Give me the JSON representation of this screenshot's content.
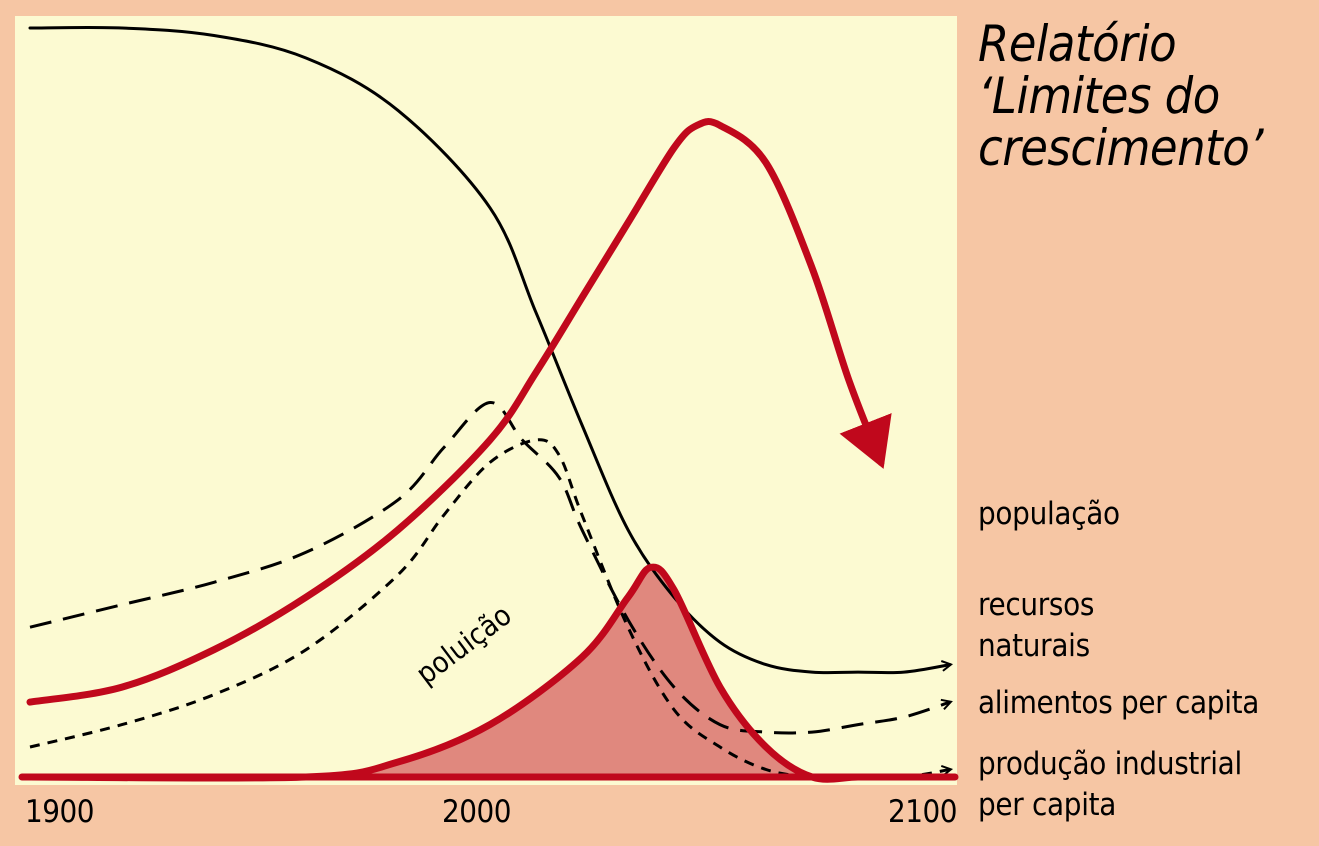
{
  "title_lines": [
    "Relatório",
    "‘Limites do",
    "crescimento’"
  ],
  "colors": {
    "page_background": "#f6c6a4",
    "plot_background": "#fcfad2",
    "accent_red": "#c0081c",
    "pollution_fill": "#e0887e",
    "black": "#000000"
  },
  "chart_data": {
    "type": "line",
    "title": "Relatório ‘Limites do crescimento’",
    "xlabel": "",
    "ylabel": "",
    "x_ticks": [
      "1900",
      "2000",
      "2100"
    ],
    "xlim": [
      1900,
      2100
    ],
    "ylim": [
      0,
      1
    ],
    "y_axis_shown": false,
    "grid": false,
    "legend_placement": "right of plot, labels at line ends",
    "series": [
      {
        "name": "população",
        "style": "thick red solid, arrow",
        "color": "#c0081c",
        "x": [
          1900,
          1920,
          1940,
          1960,
          1980,
          2000,
          2010,
          2020,
          2030,
          2040,
          2045,
          2050,
          2060,
          2070,
          2078,
          2085
        ],
        "y": [
          0.1,
          0.12,
          0.17,
          0.24,
          0.33,
          0.45,
          0.54,
          0.64,
          0.74,
          0.84,
          0.87,
          0.87,
          0.82,
          0.68,
          0.53,
          0.42
        ]
      },
      {
        "name": "recursos naturais",
        "style": "thin black solid, arrow",
        "color": "#000000",
        "x": [
          1900,
          1920,
          1940,
          1960,
          1980,
          2000,
          2010,
          2020,
          2030,
          2040,
          2050,
          2060,
          2070,
          2080,
          2090,
          2100
        ],
        "y": [
          1.0,
          1.0,
          0.99,
          0.96,
          0.89,
          0.76,
          0.62,
          0.47,
          0.33,
          0.24,
          0.18,
          0.15,
          0.14,
          0.14,
          0.14,
          0.15
        ]
      },
      {
        "name": "alimentos per capita",
        "style": "black long dash, arrow",
        "color": "#000000",
        "x": [
          1900,
          1920,
          1940,
          1960,
          1980,
          1990,
          2000,
          2007,
          2015,
          2020,
          2030,
          2040,
          2050,
          2060,
          2070,
          2080,
          2090,
          2100
        ],
        "y": [
          0.2,
          0.23,
          0.26,
          0.3,
          0.37,
          0.44,
          0.5,
          0.45,
          0.4,
          0.33,
          0.21,
          0.12,
          0.07,
          0.06,
          0.06,
          0.07,
          0.08,
          0.1
        ]
      },
      {
        "name": "produção industrial per capita",
        "style": "black short dash, arrow",
        "color": "#000000",
        "x": [
          1900,
          1920,
          1940,
          1960,
          1980,
          1990,
          2000,
          2010,
          2015,
          2020,
          2030,
          2040,
          2050,
          2060,
          2070,
          2080,
          2090,
          2100
        ],
        "y": [
          0.04,
          0.07,
          0.11,
          0.17,
          0.27,
          0.35,
          0.42,
          0.45,
          0.43,
          0.35,
          0.2,
          0.09,
          0.04,
          0.01,
          0.0,
          0.0,
          0.0,
          0.01
        ]
      },
      {
        "name": "poluição",
        "style": "thick red solid, filled area",
        "color": "#c0081c",
        "x": [
          1900,
          1960,
          1980,
          2000,
          2020,
          2030,
          2035,
          2040,
          2050,
          2060,
          2070,
          2080,
          2090,
          2100
        ],
        "y": [
          0.0,
          0.0,
          0.02,
          0.07,
          0.16,
          0.24,
          0.28,
          0.25,
          0.12,
          0.04,
          0.0,
          0.0,
          0.0,
          0.0
        ]
      }
    ],
    "labels": [
      "população",
      "recursos naturais",
      "alimentos per capita",
      "produção industrial per capita",
      "poluição"
    ]
  },
  "legend": {
    "populacao": "população",
    "recursos_1": "recursos",
    "recursos_2": "naturais",
    "alimentos": "alimentos per capita",
    "producao_1": "produção industrial",
    "producao_2": "per capita"
  },
  "annotation": "poluição"
}
